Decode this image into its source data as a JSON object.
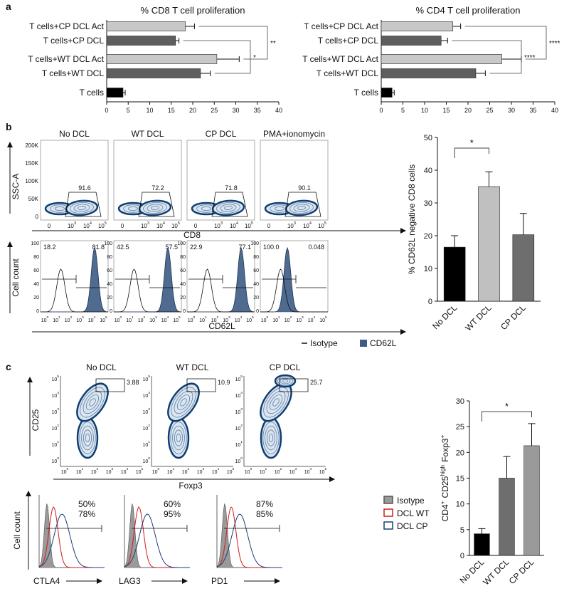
{
  "panel_labels": [
    "a",
    "b",
    "c"
  ],
  "chart_data": [
    {
      "type": "hbar",
      "title": "% CD8 T cell proliferation",
      "categories": [
        "T cells+CP DCL Act",
        "T cells+CP DCL",
        "T cells+WT DCL Act",
        "T cells+WT DCL",
        "T cells"
      ],
      "values": [
        18.3,
        16,
        25.6,
        21.8,
        3.8
      ],
      "errors": [
        2.1,
        0.8,
        5.2,
        2.3,
        0.5
      ],
      "colors": [
        "#c8c8c8",
        "#5e5e5e",
        "#c8c8c8",
        "#5e5e5e",
        "#000000"
      ],
      "xlim": [
        0,
        40
      ],
      "xticks": [
        0,
        5,
        10,
        15,
        20,
        25,
        30,
        35,
        40
      ],
      "significance": [
        "**",
        "*"
      ]
    },
    {
      "type": "hbar",
      "title": "% CD4 T cell proliferation",
      "categories": [
        "T cells+CP DCL Act",
        "T cells+CP DCL",
        "T cells+WT DCL Act",
        "T cells+WT DCL",
        "T cells"
      ],
      "values": [
        16.5,
        13.8,
        27.8,
        21.8,
        2.5
      ],
      "errors": [
        1.8,
        1.5,
        4.5,
        2.2,
        0.5
      ],
      "colors": [
        "#c8c8c8",
        "#5e5e5e",
        "#c8c8c8",
        "#5e5e5e",
        "#000000"
      ],
      "xlim": [
        0,
        40
      ],
      "xticks": [
        0,
        5,
        10,
        15,
        20,
        25,
        30,
        35,
        40
      ],
      "significance": [
        "****",
        "****"
      ]
    },
    {
      "type": "bar",
      "ylabel": [
        {
          "base": "% CD62L negative CD8 cells"
        }
      ],
      "categories": [
        "No DCL",
        "WT DCL",
        "CP DCL"
      ],
      "values": [
        16.5,
        35,
        20.3
      ],
      "errors": [
        3.5,
        4.5,
        6.5
      ],
      "colors": [
        "#000000",
        "#c0c0c0",
        "#6e6e6e"
      ],
      "ylim": [
        0,
        50
      ],
      "yticks": [
        0,
        10,
        20,
        30,
        40,
        50
      ],
      "significance": [
        "*"
      ]
    },
    {
      "type": "bar",
      "ylabel": [
        {
          "base": "CD4",
          "exp": "+"
        },
        {
          "base": "CD25",
          "exp": "high"
        },
        {
          "base": "Foxp3",
          "exp": "+"
        }
      ],
      "categories": [
        "No DCL",
        "WT DCL",
        "CP DCL"
      ],
      "values": [
        4.2,
        15,
        21.3
      ],
      "errors": [
        1,
        4.2,
        4.3
      ],
      "colors": [
        "#000000",
        "#6e6e6e",
        "#9a9a9a"
      ],
      "ylim": [
        0,
        30
      ],
      "yticks": [
        0,
        5,
        10,
        15,
        20,
        25,
        30
      ],
      "significance": [
        "*"
      ]
    }
  ],
  "flow_b": {
    "conditions": [
      "No DCL",
      "WT DCL",
      "CP DCL",
      "PMA+ionomycin"
    ],
    "gates": [
      "91.6",
      "72.2",
      "71.8",
      "90.1"
    ],
    "scatter_ylabel": "SSC-A",
    "scatter_yticks": [
      "200K",
      "150K",
      "100K",
      "50K",
      "0"
    ],
    "scatter_xticks": [
      "0",
      {
        "base": "10",
        "exp": "3"
      },
      {
        "base": "10",
        "exp": "4"
      },
      {
        "base": "10",
        "exp": "5"
      }
    ],
    "scatter_xlabel": "CD8",
    "hist_left": [
      "18.2",
      "42.5",
      "22.9",
      "100.0"
    ],
    "hist_right": [
      "81.8",
      "57.5",
      "77.1",
      "0.048"
    ],
    "hist_ylabel": "Cell count",
    "hist_yticks": [
      "100",
      "80",
      "60",
      "40",
      "20",
      "0"
    ],
    "hist_xticks": [
      {
        "base": "10",
        "exp": "0"
      },
      {
        "base": "10",
        "exp": "1"
      },
      {
        "base": "10",
        "exp": "2"
      },
      {
        "base": "10",
        "exp": "3"
      },
      {
        "base": "10",
        "exp": "4"
      },
      {
        "base": "10",
        "exp": "5"
      }
    ],
    "hist_xlabel": "CD62L",
    "legend": [
      "Isotype",
      "CD62L"
    ]
  },
  "flow_c": {
    "conditions": [
      "No DCL",
      "WT DCL",
      "CP DCL"
    ],
    "gates": [
      "3.88",
      "10.9",
      "25.7"
    ],
    "ylabel": "CD25",
    "xlabel": "Foxp3",
    "ticks": [
      {
        "base": "10",
        "exp": "0"
      },
      {
        "base": "10",
        "exp": "1"
      },
      {
        "base": "10",
        "exp": "2"
      },
      {
        "base": "10",
        "exp": "3"
      },
      {
        "base": "10",
        "exp": "4"
      },
      {
        "base": "10",
        "exp": "5"
      }
    ],
    "markers": [
      {
        "label": "CTLA4",
        "wt": "50%",
        "cp": "78%"
      },
      {
        "label": "LAG3",
        "wt": "60%",
        "cp": "95%"
      },
      {
        "label": "PD1",
        "wt": "87%",
        "cp": "85%"
      }
    ],
    "hist_ylabel": "Cell count",
    "legend": [
      "Isotype",
      "DCL WT",
      "DCL CP"
    ]
  }
}
